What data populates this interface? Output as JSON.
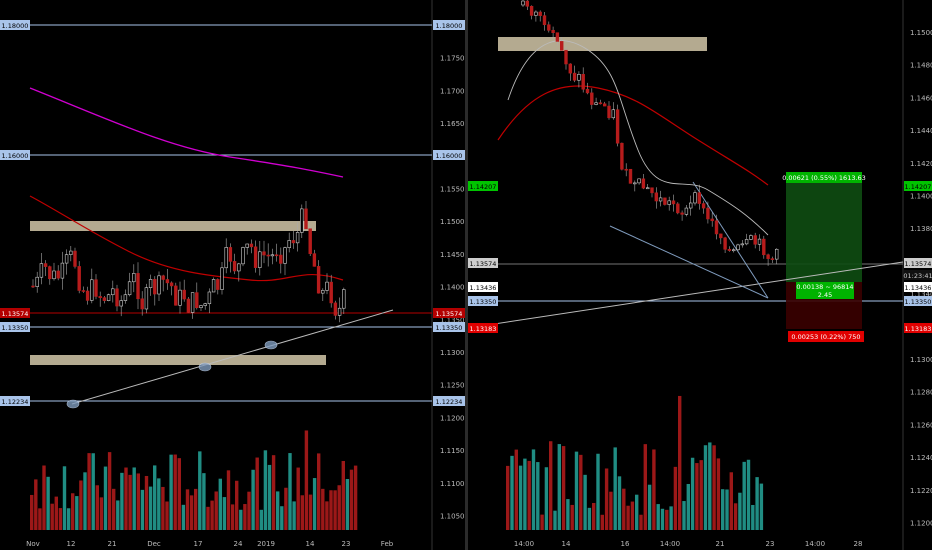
{
  "left_chart": {
    "price_ticks": [
      "1.18000",
      "1.17500",
      "1.17000",
      "1.16500",
      "1.16000",
      "1.15500",
      "1.15000",
      "1.14500",
      "1.14000",
      "1.13500",
      "1.13000",
      "1.12500",
      "1.12000",
      "1.11500",
      "1.11000",
      "1.10500"
    ],
    "date_ticks": [
      "Nov",
      "12",
      "21",
      "Dec",
      "17",
      "24",
      "2019",
      "14",
      "23",
      "Feb"
    ],
    "level_labels": [
      {
        "text": "1.18000",
        "color": "#a9c4ea",
        "text_color": "#000000"
      },
      {
        "text": "1.16000",
        "color": "#a9c4ea",
        "text_color": "#000000"
      },
      {
        "text": "1.13574",
        "color": "#b30000",
        "text_color": "#ffffff"
      },
      {
        "text": "1.13350",
        "color": "#a9c4ea",
        "text_color": "#000000"
      },
      {
        "text": "1.12234",
        "color": "#a9c4ea",
        "text_color": "#000000"
      }
    ]
  },
  "right_chart": {
    "price_ticks": [
      "1.15000",
      "1.14800",
      "1.14600",
      "1.14400",
      "1.14200",
      "1.14000",
      "1.13800",
      "1.13600",
      "1.13400",
      "1.13200",
      "1.13000",
      "1.12800",
      "1.12600",
      "1.12400",
      "1.12200",
      "1.12000"
    ],
    "date_ticks": [
      "14:00",
      "14",
      "16",
      "14:00",
      "21",
      "23",
      "14:00",
      "28"
    ],
    "level_labels": [
      {
        "text": "1.14207",
        "color": "#00c400",
        "text_color": "#000000"
      },
      {
        "text": "1.13574",
        "color": "#cccccc",
        "text_color": "#000000"
      },
      {
        "text": "01:23:41",
        "color": "#111111",
        "text_color": "#cccccc"
      },
      {
        "text": "1.13436",
        "color": "#ffffff",
        "text_color": "#000000"
      },
      {
        "text": "1.13350",
        "color": "#a9c4ea",
        "text_color": "#000000"
      },
      {
        "text": "1.13183",
        "color": "#e00000",
        "text_color": "#ffffff"
      }
    ],
    "position_tool": {
      "target_label": "0.00621 (0.55%) 1613.63",
      "entry_label_1": "0.00138 ~ 96814",
      "entry_label_2": "2.45",
      "stop_label": "0.00253 (0.22%) 750"
    }
  },
  "colors": {
    "bull": "#26a69a",
    "bear": "#b71c1c",
    "level_line": "#a9c4ea",
    "zone": "#c8bca0",
    "ma_long": "#d000d0",
    "ma_mid": "#c00000"
  }
}
